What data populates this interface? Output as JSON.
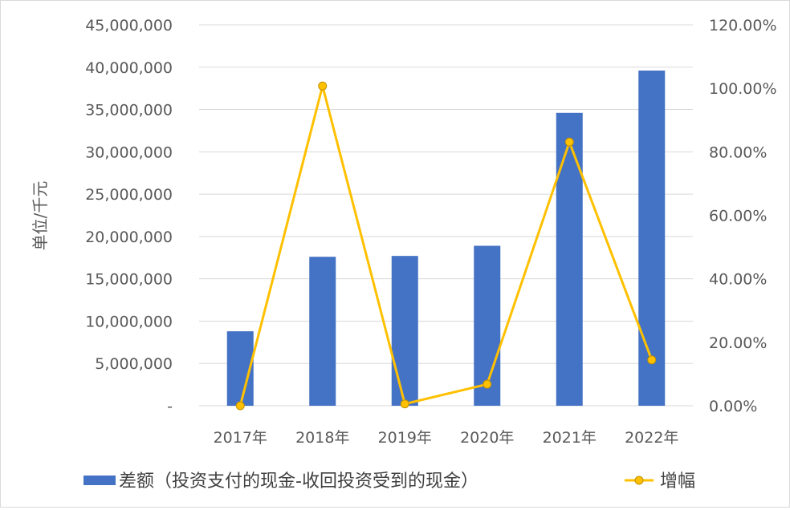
{
  "chart_data": {
    "type": "bar",
    "categories": [
      "2017年",
      "2018年",
      "2019年",
      "2020年",
      "2021年",
      "2022年"
    ],
    "ylabel": "单位/千元",
    "ylim": [
      0,
      45000000
    ],
    "y_ticks": [
      "-",
      "5,000,000",
      "10,000,000",
      "15,000,000",
      "20,000,000",
      "25,000,000",
      "30,000,000",
      "35,000,000",
      "40,000,000",
      "45,000,000"
    ],
    "y2lim": [
      0,
      1.2
    ],
    "y2_ticks": [
      "0.00%",
      "20.00%",
      "40.00%",
      "60.00%",
      "80.00%",
      "100.00%",
      "120.00%"
    ],
    "grid": true,
    "legend_position": "bottom",
    "series": [
      {
        "name": "差额（投资支付的现金-收回投资受到的现金）",
        "type": "bar",
        "axis": "left",
        "color": "#4472C4",
        "values": [
          8800000,
          17600000,
          17700000,
          18900000,
          34600000,
          39600000
        ]
      },
      {
        "name": "增幅",
        "type": "line",
        "axis": "right",
        "color": "#FFC000",
        "values": [
          0.0,
          1.0074,
          0.0057,
          0.0678,
          0.8307,
          0.1445
        ]
      }
    ]
  }
}
